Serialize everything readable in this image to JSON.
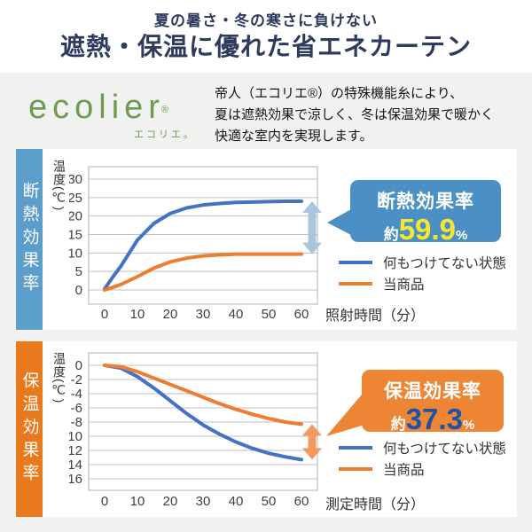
{
  "header": {
    "subtitle": "夏の暑さ・冬の寒さに負けない",
    "title": "遮熱・保温に優れた省エネカーテン",
    "text_color": "#2e3a5e"
  },
  "intro": {
    "logo_text": "ecolier",
    "logo_reg": "®",
    "logo_sub": "エコリエ。",
    "logo_color": "#6e9b51",
    "description_lines": [
      "帝人（エコリエ®）の特殊機能糸により、",
      "夏は遮熱効果で涼しく、冬は保温効果で暖かく",
      "快適な室内を実現します。"
    ]
  },
  "chart_data": [
    {
      "type": "line",
      "side_label": "断熱効果率",
      "side_color": "#5b9ecb",
      "ylabel": "温度(℃)",
      "xlabel": "照射時間（分）",
      "ylim": [
        0,
        30
      ],
      "yticks": [
        0,
        5,
        10,
        15,
        20,
        25,
        30
      ],
      "xticks": [
        0,
        10,
        20,
        30,
        40,
        50,
        60
      ],
      "grid": true,
      "legend_position": "right-bottom",
      "x": [
        0,
        2.5,
        5,
        10,
        15,
        20,
        25,
        30,
        35,
        40,
        45,
        50,
        55,
        60
      ],
      "series": [
        {
          "name": "何もつけてない状態",
          "color": "#4472c4",
          "values": [
            0.3,
            3.5,
            6.5,
            13.5,
            18,
            20.7,
            22.2,
            23,
            23.4,
            23.7,
            23.8,
            23.9,
            24,
            24
          ]
        },
        {
          "name": "当商品",
          "color": "#ed7d31",
          "values": [
            0,
            0.7,
            1.5,
            3.6,
            5.9,
            7.6,
            8.6,
            9.2,
            9.5,
            9.7,
            9.7,
            9.7,
            9.7,
            9.7
          ]
        }
      ],
      "arrow_color": "#a9c6de",
      "callout": {
        "label": "断熱効果率",
        "prefix": "約",
        "value": "59.9",
        "suffix": "%",
        "bg": "#4b90c4",
        "value_color": "#f5e731"
      }
    },
    {
      "type": "line",
      "side_label": "保温効果率",
      "side_color": "#e8791d",
      "ylabel": "温度(℃)",
      "xlabel": "測定時間（分）",
      "ylim": [
        -16,
        0
      ],
      "yticks": [
        0,
        -2,
        -4,
        -6,
        -8,
        -10,
        -12,
        -14,
        -16
      ],
      "xticks": [
        0,
        10,
        20,
        30,
        40,
        50,
        60
      ],
      "grid": true,
      "legend_position": "right-bottom",
      "x": [
        0,
        5,
        10,
        15,
        20,
        25,
        30,
        35,
        40,
        45,
        50,
        55,
        60
      ],
      "series": [
        {
          "name": "何もつけてない状態",
          "color": "#4472c4",
          "values": [
            0,
            -0.4,
            -1.6,
            -3.2,
            -5,
            -6.8,
            -8.4,
            -9.7,
            -10.8,
            -11.7,
            -12.4,
            -12.9,
            -13.3
          ]
        },
        {
          "name": "当商品",
          "color": "#ed7d31",
          "values": [
            0,
            -0.2,
            -0.9,
            -1.8,
            -2.7,
            -3.6,
            -4.5,
            -5.4,
            -6.2,
            -6.9,
            -7.5,
            -8,
            -8.3
          ]
        }
      ],
      "arrow_color": "#f09a62",
      "callout": {
        "label": "保温効果率",
        "prefix": "約",
        "value": "37.3",
        "suffix": "%",
        "bg": "#ed8534",
        "value_color": "#1d53a6"
      }
    }
  ]
}
